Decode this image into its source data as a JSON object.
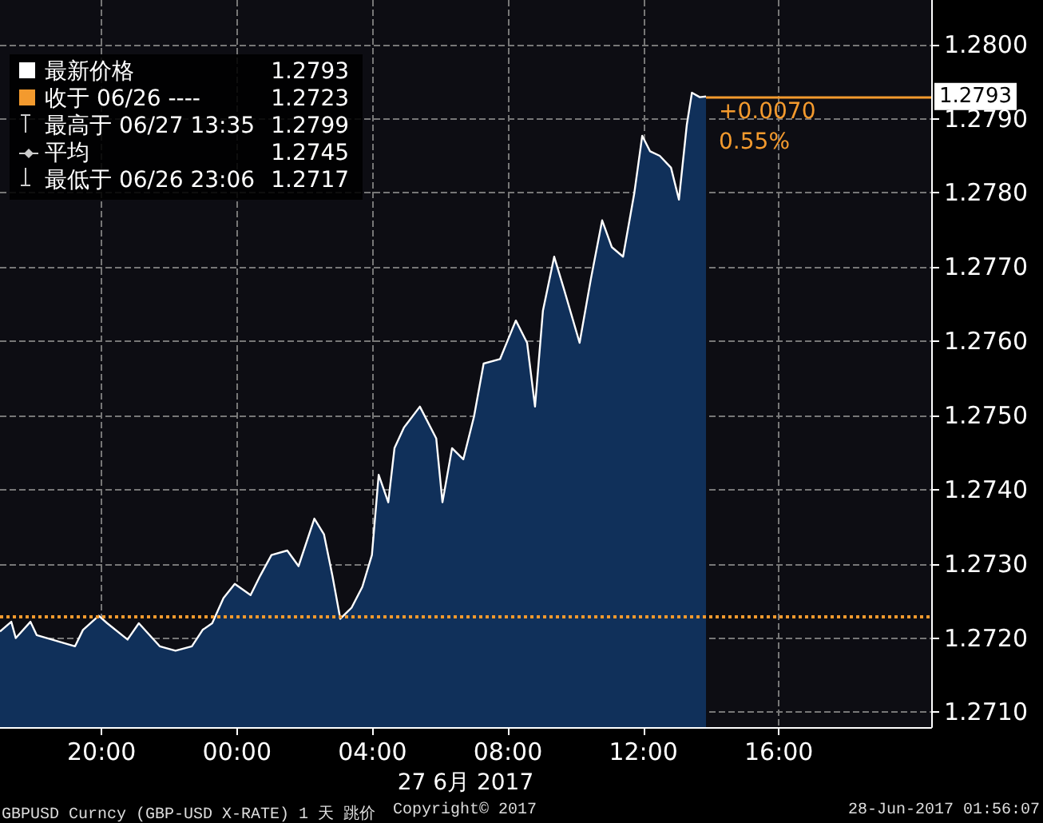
{
  "chart_data": {
    "type": "area",
    "xlabel": "27 6月 2017",
    "x": [
      "2017-06-26T17:00",
      "2017-06-26T17:20",
      "2017-06-26T17:28",
      "2017-06-26T17:54",
      "2017-06-26T18:05",
      "2017-06-26T19:13",
      "2017-06-26T19:27",
      "2017-06-26T19:55",
      "2017-06-26T20:10",
      "2017-06-26T20:46",
      "2017-06-26T21:06",
      "2017-06-26T21:43",
      "2017-06-26T22:11",
      "2017-06-26T22:40",
      "2017-06-26T22:59",
      "2017-06-26T23:16",
      "2017-06-26T23:36",
      "2017-06-26T23:56",
      "2017-06-27T00:24",
      "2017-06-27T00:41",
      "2017-06-27T01:01",
      "2017-06-27T01:29",
      "2017-06-27T01:49",
      "2017-06-27T02:17",
      "2017-06-27T02:34",
      "2017-06-27T02:49",
      "2017-06-27T03:03",
      "2017-06-27T03:23",
      "2017-06-27T03:42",
      "2017-06-27T03:59",
      "2017-06-27T04:11",
      "2017-06-27T04:28",
      "2017-06-27T04:39",
      "2017-06-27T04:56",
      "2017-06-27T05:24",
      "2017-06-27T05:53",
      "2017-06-27T06:04",
      "2017-06-27T06:21",
      "2017-06-27T06:41",
      "2017-06-27T07:00",
      "2017-06-27T07:17",
      "2017-06-27T07:46",
      "2017-06-27T08:14",
      "2017-06-27T08:34",
      "2017-06-27T08:48",
      "2017-06-27T09:02",
      "2017-06-27T09:22",
      "2017-06-27T09:39",
      "2017-06-27T10:07",
      "2017-06-27T10:27",
      "2017-06-27T10:47",
      "2017-06-27T11:04",
      "2017-06-27T11:24",
      "2017-06-27T11:44",
      "2017-06-27T11:58",
      "2017-06-27T12:12",
      "2017-06-27T12:29",
      "2017-06-27T12:49",
      "2017-06-27T13:03",
      "2017-06-27T13:17",
      "2017-06-27T13:26",
      "2017-06-27T13:40",
      "2017-06-27T13:51"
    ],
    "series": [
      {
        "name": "最新价格",
        "color": "#ffffff",
        "values": [
          1.27209,
          1.27222,
          1.272,
          1.27222,
          1.27204,
          1.27189,
          1.27211,
          1.2723,
          1.2722,
          1.27198,
          1.2722,
          1.27189,
          1.27183,
          1.27189,
          1.27211,
          1.2722,
          1.27254,
          1.27273,
          1.27258,
          1.27284,
          1.27312,
          1.27318,
          1.27297,
          1.27361,
          1.2734,
          1.27284,
          1.27226,
          1.27241,
          1.27269,
          1.27312,
          1.2742,
          1.27383,
          1.27456,
          1.27484,
          1.27512,
          1.27469,
          1.27383,
          1.27456,
          1.27441,
          1.27499,
          1.2757,
          1.27576,
          1.27628,
          1.27598,
          1.27512,
          1.27641,
          1.27714,
          1.27671,
          1.27598,
          1.27684,
          1.27763,
          1.27727,
          1.27714,
          1.278,
          1.27877,
          1.27856,
          1.2785,
          1.27834,
          1.27791,
          1.27892,
          1.27935,
          1.27929,
          1.2793
        ]
      }
    ],
    "xlim": [
      "2017-06-26T17:00",
      "2017-06-27T20:30"
    ],
    "xticks": [
      {
        "value": "2017-06-26T20:00",
        "label": "20:00"
      },
      {
        "value": "2017-06-27T00:00",
        "label": "00:00"
      },
      {
        "value": "2017-06-27T04:00",
        "label": "04:00"
      },
      {
        "value": "2017-06-27T08:00",
        "label": "08:00"
      },
      {
        "value": "2017-06-27T12:00",
        "label": "12:00"
      },
      {
        "value": "2017-06-27T16:00",
        "label": "16:00"
      }
    ],
    "ylim": [
      1.2708,
      1.2806
    ],
    "yticks": [
      {
        "value": 1.271,
        "label": "1.2710"
      },
      {
        "value": 1.272,
        "label": "1.2720"
      },
      {
        "value": 1.273,
        "label": "1.2730"
      },
      {
        "value": 1.274,
        "label": "1.2740"
      },
      {
        "value": 1.275,
        "label": "1.2750"
      },
      {
        "value": 1.276,
        "label": "1.2760"
      },
      {
        "value": 1.277,
        "label": "1.2770"
      },
      {
        "value": 1.278,
        "label": "1.2780"
      },
      {
        "value": 1.279,
        "label": "1.2790"
      },
      {
        "value": 1.28,
        "label": "1.2800"
      }
    ],
    "ref_lines": [
      {
        "axis": "y",
        "value": 1.2723,
        "label": "收于 06/26 ----",
        "color": "#f39a2e",
        "line_style": "dotted"
      },
      {
        "axis": "y",
        "value": 1.2793,
        "label": "1.2793",
        "color": "#f39a2e",
        "line_style": "solid"
      }
    ],
    "annotations": [
      "1.2793",
      "1.2723",
      "最高于 06/27 13:35",
      "1.2799",
      "平均",
      "1.2745",
      "最低于 06/26 23:06",
      "1.2717",
      "+0.0070",
      "0.55%",
      "GBPUSD Curncy (GBP-USD X-RATE) 1 天 跳价",
      "Copyright© 2017",
      "28-Jun-2017 01:56:07"
    ],
    "grid": true,
    "legend": "top left",
    "marker": "none",
    "line_style": "solid"
  }
}
